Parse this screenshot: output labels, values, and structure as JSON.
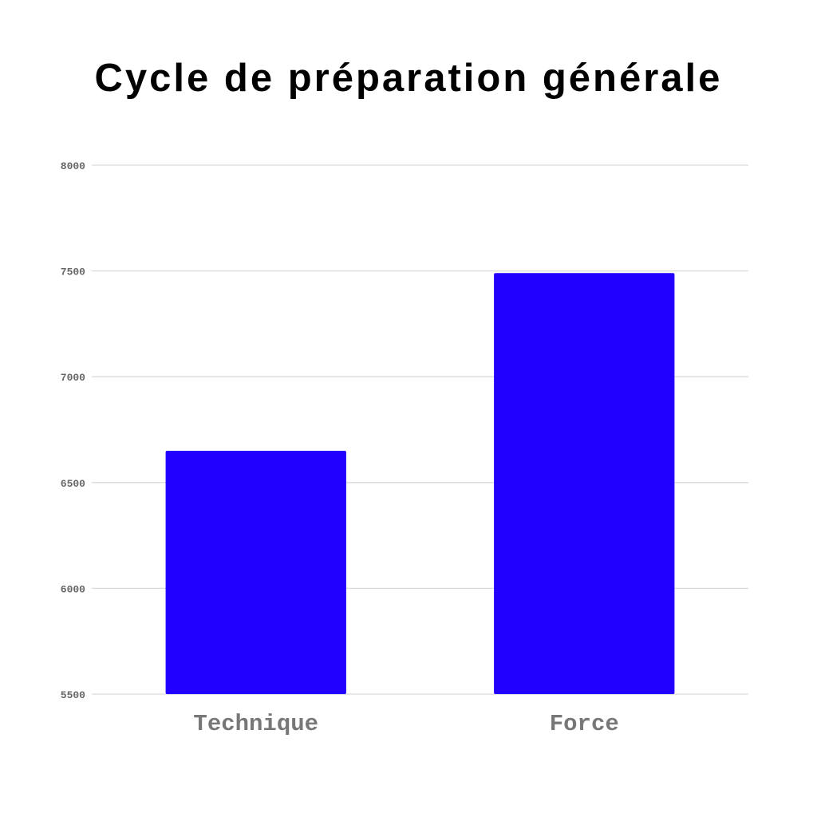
{
  "chart_data": {
    "type": "bar",
    "title": "Cycle de préparation générale",
    "xlabel": "",
    "ylabel": "",
    "categories": [
      "Technique",
      "Force"
    ],
    "values": [
      6650,
      7490
    ],
    "ylim": [
      5500,
      8000
    ],
    "yticks": [
      "5500",
      "6000",
      "6500",
      "7000",
      "7500",
      "8000"
    ],
    "grid": true,
    "legend": "none",
    "bar_color": "#2200ff"
  }
}
